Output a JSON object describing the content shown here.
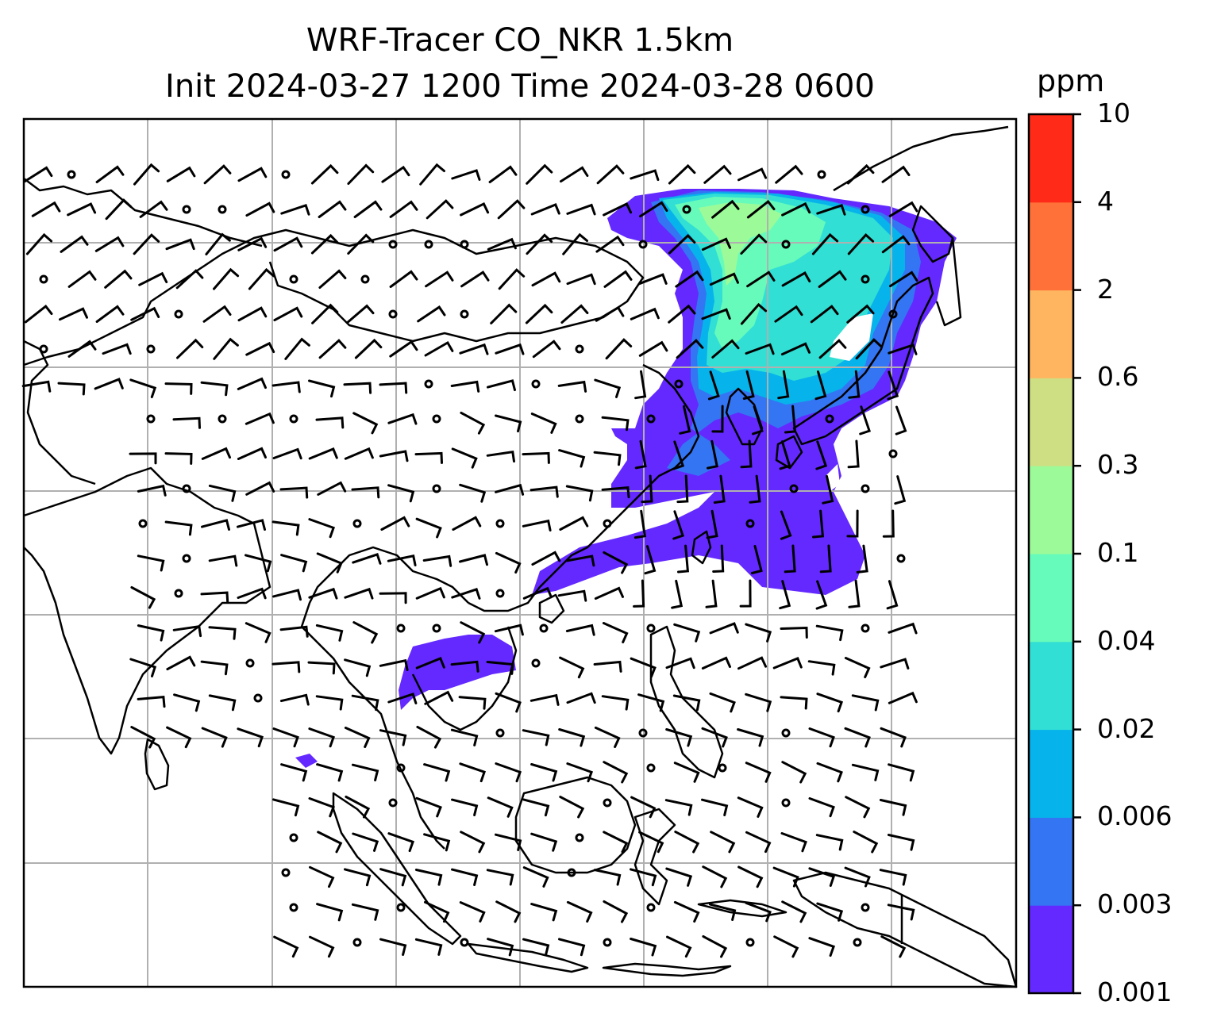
{
  "title": {
    "line1": "WRF-Tracer CO_NKR 1.5km",
    "line2": "Init 2024-03-27 1200 Time 2024-03-28 0600"
  },
  "colorbar": {
    "unit": "ppm",
    "levels": [
      "0.001",
      "0.003",
      "0.006",
      "0.02",
      "0.04",
      "0.1",
      "0.3",
      "0.6",
      "2",
      "4",
      "10"
    ],
    "colors": [
      "#6329ff",
      "#3475f3",
      "#07b3eb",
      "#31dfd4",
      "#67fbbb",
      "#9cfb98",
      "#cedf83",
      "#ffb460",
      "#ff7138",
      "#ff2a17"
    ]
  },
  "map": {
    "projection": "lat-lon",
    "gridlines": true,
    "coastlines": true,
    "wind_barbs": true,
    "feature_colors": {
      "coast": "#000000",
      "grid": "#b0b0b0",
      "barb": "#000000"
    }
  }
}
